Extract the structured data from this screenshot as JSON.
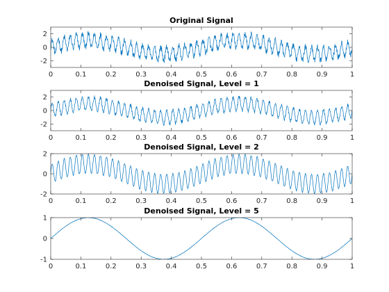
{
  "figure": {
    "background": "#ffffff"
  },
  "chart_data": [
    {
      "type": "line",
      "title": "Original Signal",
      "xlabel": "",
      "ylabel": "",
      "xlim": [
        0,
        1
      ],
      "ylim": [
        -3,
        3
      ],
      "xticks": [
        0,
        0.1,
        0.2,
        0.3,
        0.4,
        0.5,
        0.6,
        0.7,
        0.8,
        0.9,
        1
      ],
      "xtick_labels": [
        "0",
        "0.1",
        "0.2",
        "0.3",
        "0.4",
        "0.5",
        "0.6",
        "0.7",
        "0.8",
        "0.9",
        "1"
      ],
      "yticks": [
        -2,
        0,
        2
      ],
      "ytick_labels": [
        "-2",
        "0",
        "2"
      ],
      "grid": false,
      "legend": "none",
      "color": "#0072bd",
      "series": [
        {
          "x_range": [
            0,
            1
          ],
          "components": [
            {
              "kind": "sine",
              "amplitude": 1.0,
              "frequency": 2,
              "phase_x": 0
            },
            {
              "kind": "sine",
              "amplitude": 1.0,
              "frequency": 50,
              "phase_x": 0
            },
            {
              "kind": "noise",
              "amplitude": 0.45
            }
          ]
        }
      ]
    },
    {
      "type": "line",
      "title": "Denoised Signal, Level = 1",
      "xlabel": "",
      "ylabel": "",
      "xlim": [
        0,
        1
      ],
      "ylim": [
        -3,
        3
      ],
      "xticks": [
        0,
        0.1,
        0.2,
        0.3,
        0.4,
        0.5,
        0.6,
        0.7,
        0.8,
        0.9,
        1
      ],
      "xtick_labels": [
        "0",
        "0.1",
        "0.2",
        "0.3",
        "0.4",
        "0.5",
        "0.6",
        "0.7",
        "0.8",
        "0.9",
        "1"
      ],
      "yticks": [
        -2,
        0,
        2
      ],
      "ytick_labels": [
        "-2",
        "0",
        "2"
      ],
      "grid": false,
      "legend": "none",
      "color": "#0072bd",
      "series": [
        {
          "x_range": [
            0,
            1
          ],
          "components": [
            {
              "kind": "sine",
              "amplitude": 1.0,
              "frequency": 2,
              "phase_x": 0
            },
            {
              "kind": "sine",
              "amplitude": 1.0,
              "frequency": 50,
              "phase_x": 0
            },
            {
              "kind": "noise",
              "amplitude": 0.25
            }
          ]
        }
      ]
    },
    {
      "type": "line",
      "title": "Denoised Signal, Level = 2",
      "xlabel": "",
      "ylabel": "",
      "xlim": [
        0,
        1
      ],
      "ylim": [
        -2,
        2
      ],
      "xticks": [
        0,
        0.1,
        0.2,
        0.3,
        0.4,
        0.5,
        0.6,
        0.7,
        0.8,
        0.9,
        1
      ],
      "xtick_labels": [
        "0",
        "0.1",
        "0.2",
        "0.3",
        "0.4",
        "0.5",
        "0.6",
        "0.7",
        "0.8",
        "0.9",
        "1"
      ],
      "yticks": [
        -2,
        0,
        2
      ],
      "ytick_labels": [
        "-2",
        "0",
        "2"
      ],
      "grid": false,
      "legend": "none",
      "color": "#0072bd",
      "series": [
        {
          "x_range": [
            0,
            1
          ],
          "components": [
            {
              "kind": "sine",
              "amplitude": 1.0,
              "frequency": 2,
              "phase_x": 0
            },
            {
              "kind": "sine",
              "amplitude": 0.95,
              "frequency": 50,
              "phase_x": 0
            },
            {
              "kind": "noise",
              "amplitude": 0.06
            }
          ]
        }
      ]
    },
    {
      "type": "line",
      "title": "Denoised Signal, Level = 5",
      "xlabel": "",
      "ylabel": "",
      "xlim": [
        0,
        1
      ],
      "ylim": [
        -1,
        1
      ],
      "xticks": [
        0,
        0.1,
        0.2,
        0.3,
        0.4,
        0.5,
        0.6,
        0.7,
        0.8,
        0.9,
        1
      ],
      "xtick_labels": [
        "0",
        "0.1",
        "0.2",
        "0.3",
        "0.4",
        "0.5",
        "0.6",
        "0.7",
        "0.8",
        "0.9",
        "1"
      ],
      "yticks": [
        -1,
        0,
        1
      ],
      "ytick_labels": [
        "-1",
        "0",
        "1"
      ],
      "grid": false,
      "legend": "none",
      "color": "#0072bd",
      "series": [
        {
          "x_range": [
            0,
            1
          ],
          "components": [
            {
              "kind": "sine",
              "amplitude": 1.0,
              "frequency": 2,
              "phase_x": 0
            },
            {
              "kind": "noise",
              "amplitude": 0.01
            }
          ]
        }
      ]
    }
  ]
}
